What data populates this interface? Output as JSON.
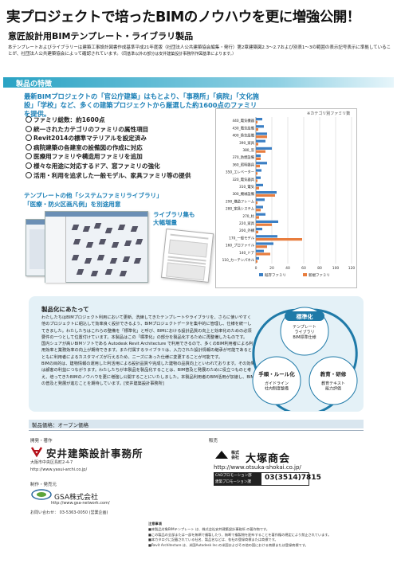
{
  "headline": "実プロジェクトで培ったBIMのノウハウを更に増強公開！",
  "subhead": "意匠設計用BIMテンプレート・ライブラリ製品",
  "intro": {
    "text": "本テンプレートおよびライブラリーは建築工事設計図書作成基準平成21年度版（社団法人公共建築協会編集・発行）第2章建築図2.3～2.7および別表1～3の範囲の表示記号表示に準拠していることが、社団法人公共建築協会によって確認されています。",
    "note": "（同基準以外の部分は安井建築設計事務所作図基準によります。）"
  },
  "features": {
    "title": "製品の特徴",
    "lead": "最新BIMプロジェクトの「官公庁建築」はもとより、「事務所」「病院」「文化施設」「学校」など、多くの建築プロジェクトから厳選した約1600点のファミリを提供。",
    "bullets": [
      "ファミリ総数：約1600点",
      "統一されたカテゴリのファミリの属性項目",
      "Revit2014の標準マテリアルを設定済み",
      "病院建築の各建室の設備図の作成に対応",
      "医療用ファミリや構造用ファミリを追加",
      "様々な用途に対応するドア、窓ファミリの強化",
      "活用・利用を追求した一般モデル、家具ファミリ等の提供"
    ],
    "system_note_line1": "テンプレートの他「システムファミリライブラリ」",
    "system_note_line2": "「医療・防火区画凡例」を別途用意",
    "library_note_line1": "ライブラリ集も",
    "library_note_line2": "大幅増量"
  },
  "chart_data": {
    "type": "bar",
    "orientation": "horizontal",
    "unit_label": "※カテゴリ別ファミリ数",
    "categories": [
      "440_電気機器",
      "430_電気設備",
      "400_換気設備",
      "390_家具",
      "380_窓",
      "370_防煙設備",
      "360_照明器具",
      "350_エレベーター",
      "320_電気器具",
      "310_電気",
      "300_機械設備",
      "290_構造フレーム",
      "280_家具システム",
      "270_柱",
      "220_家具",
      "200_外構",
      "170_一般モデル",
      "160_プロファイル",
      "140_ドア",
      "110_カーテンパネル"
    ],
    "series": [
      {
        "name": "既存ファミリ",
        "color": "#3b7fc4",
        "values": [
          8,
          10,
          14,
          12,
          20,
          6,
          14,
          7,
          6,
          9,
          26,
          11,
          9,
          12,
          28,
          8,
          27,
          22,
          10,
          4
        ]
      },
      {
        "name": "新規ファミリ",
        "color": "#e87d3e",
        "values": [
          2,
          3,
          14,
          3,
          12,
          6,
          5,
          2,
          2,
          4,
          24,
          2,
          6,
          4,
          20,
          3,
          58,
          14,
          18,
          2
        ]
      }
    ],
    "xlim": [
      0,
      120
    ],
    "xticks": [
      "0",
      "20",
      "40",
      "60",
      "80",
      "100",
      "120"
    ],
    "grid": true,
    "legend": "bottom"
  },
  "info": {
    "title": "製品化にあたって",
    "paragraphs": [
      "わたしたちはBIMプロジェクト利用において更新、洗練してきたテンプレートやライブラリを、さらに使いやすく他のプロジェクトに組込して効率良く設計できるよう、BIMプロジェクトデータを集中的に管理し、仕様を統一してきました。わたしたちはこれらの整備を「標準化」と呼び、BIMにおける設計品質の向上と効率化のための必須要件の一つとして位置付けています。本製品はこの「標準化」の部分を製品化するために再整備したものです。",
      "国内シェアが高いBIMソフトである Autodesk Revit Architecture で利用できるので、多くのBIM利用者による利用効率と業務効率の向上が期待できます。また付属するライブラリは、入力された設計情報の継承が可能であるとともに利用者によるカスタマイズが行えるため、ニーズにあった仕様に変更することが可能です。",
      "BIMの目的は、建物情報の運用した利活用による設計品質や完成した建物の品質向上といわれております。その効果は顧客の利益につながります。わたしたちが本製品を製品化することは、BIM普及と発展のために役立つものと考え、培ってきたBIMのノウハウを更に増強し公開することにいたしました。本製品利用者のBIM活用が加速し、BIMの普及と発展が進むことを期待しています。[安井建築設計事務所]"
    ],
    "diagram": {
      "top_title": "標準化",
      "top_sub": "テンプレート\nライブラリ\nBIM標準仕様",
      "left_title": "手順・ルール化",
      "left_sub": "ガイドライン\n社内制度整備",
      "right_title": "教育・研修",
      "right_sub": "教育テキスト\n能力評価"
    }
  },
  "spec": "製品価格：オープン価格",
  "developer": {
    "label": "開発・著作",
    "name": "安井建築設計事務所",
    "address": "大阪市中央区島町2-4-7",
    "url": "http://www.yasui-archi.co.jp/"
  },
  "manufacturer": {
    "label": "制作・発売元",
    "name": "GSA株式会社",
    "url": "http://www.gsa-network.com/",
    "tel": "お問い合わせ： 03-5363-0050 (営業企画)"
  },
  "sales": {
    "label": "販売",
    "kk": "株式\n会社",
    "name": "大塚商会",
    "url": "http://www.otsuka-shokai.co.jp/",
    "cad_label": "CADプロモーション部\n建築プロモーション課",
    "cad_tel": "03(3514)7815"
  },
  "notes": {
    "title": "注意事項",
    "lines": [
      "■本製品対象BIMテンプレート は、株式会社安井建築設計事務所 の著作物です。",
      "■この製品の全部または一部を無断で複製したり、無断で複製物を配布することを著作権の規定により禁止されています。",
      "■本カタログに記載されている社名、製品名などは、各社の登録商標または商標です。",
      "■Revit Architecture は、米国Autodesk Inc.の米国およびその他の国における商標または登録商標です。"
    ]
  }
}
